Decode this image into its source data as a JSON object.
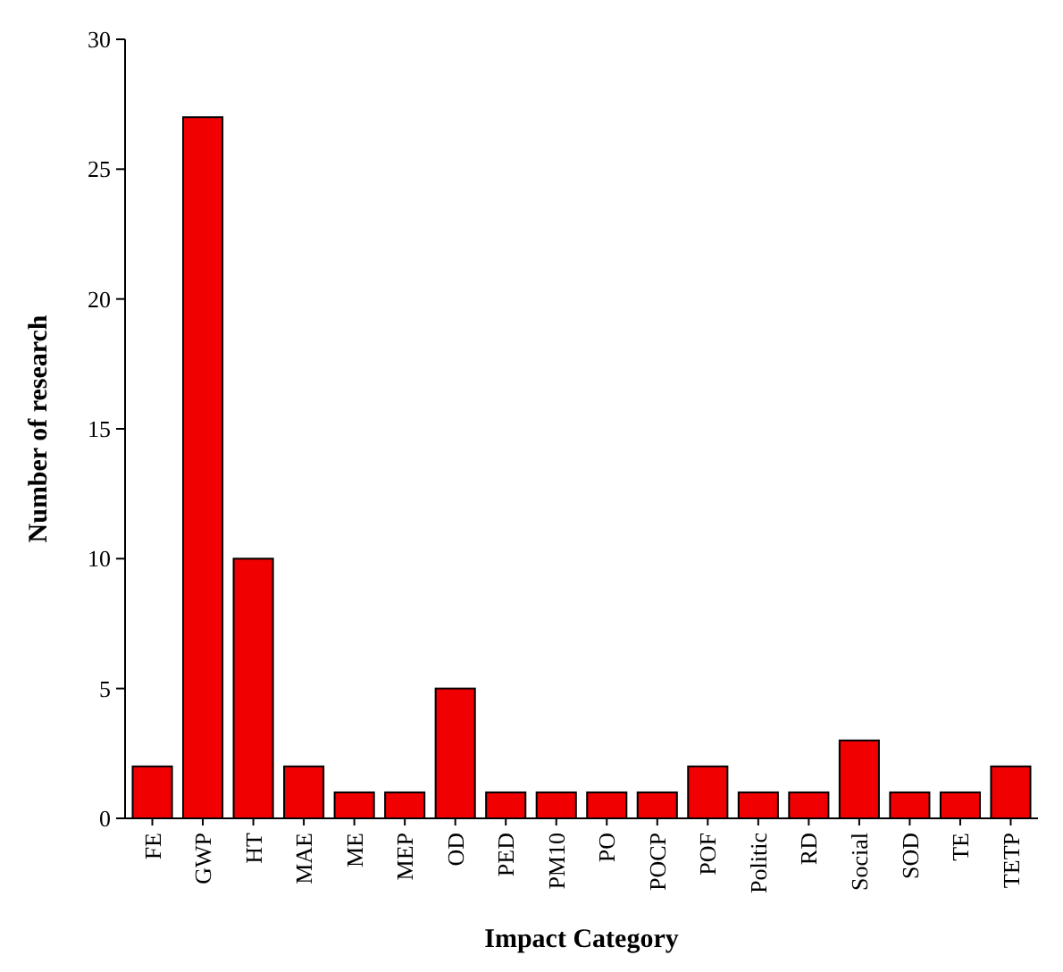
{
  "chart_data": {
    "type": "bar",
    "xlabel": "Impact Category",
    "ylabel": "Number of research",
    "categories": [
      "FE",
      "GWP",
      "HT",
      "MAE",
      "ME",
      "MEP",
      "OD",
      "PED",
      "PM10",
      "PO",
      "POCP",
      "POF",
      "Politic",
      "RD",
      "Social",
      "SOD",
      "TE",
      "TETP"
    ],
    "values": [
      2,
      27,
      10,
      2,
      1,
      1,
      5,
      1,
      1,
      1,
      1,
      2,
      1,
      1,
      3,
      1,
      1,
      2
    ],
    "color": "#f00000",
    "ylim": [
      0,
      30
    ],
    "yticks": [
      0,
      5,
      10,
      15,
      20,
      25,
      30
    ],
    "grid": false
  }
}
